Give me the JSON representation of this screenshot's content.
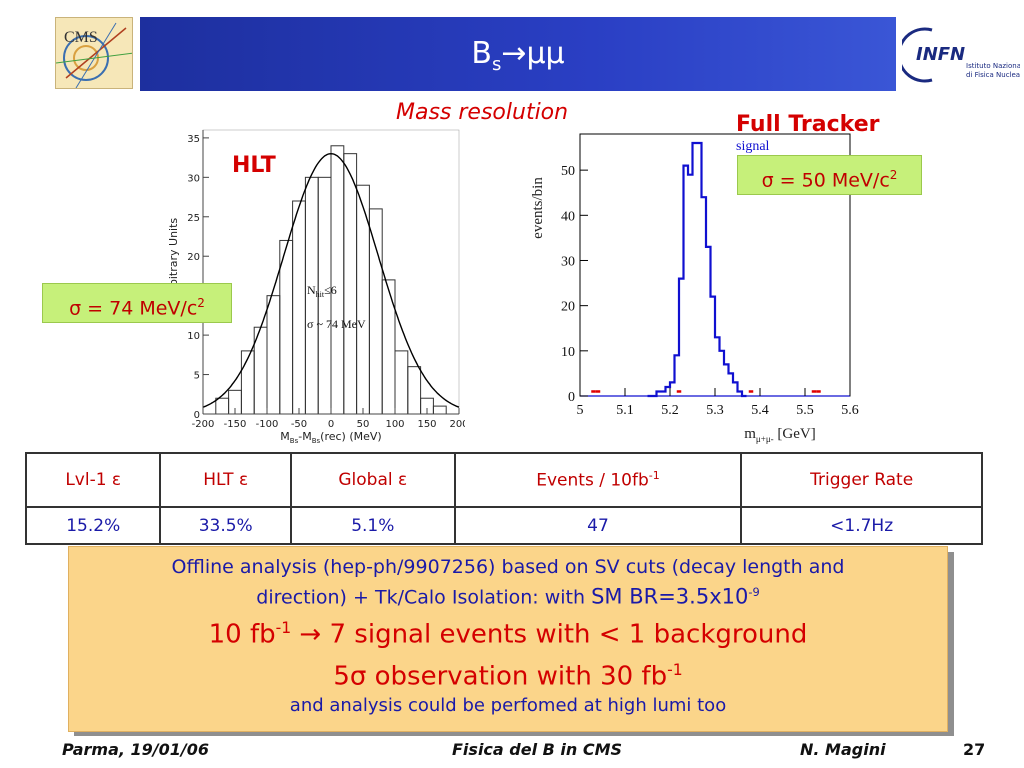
{
  "header": {
    "logo_left": "CMS",
    "title_main": "B",
    "title_sub": "s",
    "title_rest": "→μμ",
    "logo_right": "INFN",
    "logo_right_sub1": "Istituto Nazionale",
    "logo_right_sub2": "di Fisica Nucleare"
  },
  "labels": {
    "mass_resolution": "Mass resolution",
    "full_tracker": "Full Tracker",
    "hlt": "HLT",
    "sigma_hlt_text": "σ = 74 MeV/c",
    "sigma_hlt_sup": "2",
    "sigma_ft_text": "σ = 50 MeV/c",
    "sigma_ft_sup": "2"
  },
  "chart_data": [
    {
      "type": "bar",
      "ylabel": "Arbitrary Units",
      "xlabel_main": "M",
      "xlabel_sub1": "Bs",
      "xlabel_mid": "-M",
      "xlabel_sub2": "Bs",
      "xlabel_end": "(rec) (MeV)",
      "annotation1_main": "N",
      "annotation1_sub": "hit",
      "annotation1_end": "≤6",
      "annotation2": "σ ~ 74 MeV",
      "xlim": [
        -200,
        200
      ],
      "ylim": [
        0,
        36
      ],
      "x_ticks": [
        -200,
        -150,
        -100,
        -50,
        0,
        50,
        100,
        150,
        200
      ],
      "y_ticks": [
        0,
        5,
        10,
        15,
        20,
        25,
        30,
        35
      ],
      "bin_edges": [
        -180,
        -160,
        -140,
        -120,
        -100,
        -80,
        -60,
        -40,
        -20,
        0,
        20,
        40,
        60,
        80,
        100,
        120,
        140,
        160,
        180
      ],
      "values": [
        2,
        3,
        8,
        11,
        15,
        22,
        27,
        30,
        30,
        34,
        33,
        29,
        26,
        17,
        8,
        6,
        2,
        1
      ],
      "fit": {
        "type": "gaussian",
        "amplitude": 33,
        "mean": 0,
        "sigma": 74
      }
    },
    {
      "type": "bar",
      "ylabel": "events/bin",
      "xlabel_main": "m",
      "xlabel_sub": "μ+μ-",
      "xlabel_end": " [GeV]",
      "legend": "signal",
      "legend_position": "top-right",
      "xlim": [
        5.0,
        5.6
      ],
      "ylim": [
        0,
        58
      ],
      "x_ticks": [
        5,
        5.1,
        5.2,
        5.3,
        5.4,
        5.5,
        5.6
      ],
      "y_ticks": [
        0,
        10,
        20,
        30,
        40,
        50
      ],
      "bin_width": 0.01,
      "x_start": 5.15,
      "series": [
        {
          "name": "signal",
          "color": "#1010d0",
          "values": [
            0,
            0,
            1,
            1,
            2,
            3,
            9,
            26,
            51,
            49,
            56,
            56,
            44,
            33,
            22,
            13,
            10,
            7,
            5,
            3,
            1,
            0
          ]
        },
        {
          "color": "#e00000",
          "points": [
            [
              5.03,
              1
            ],
            [
              5.04,
              1
            ],
            [
              5.22,
              1
            ],
            [
              5.38,
              1
            ],
            [
              5.52,
              1
            ],
            [
              5.53,
              1
            ]
          ]
        }
      ]
    }
  ],
  "table": {
    "headers": [
      {
        "text": "Lvl-1 ε"
      },
      {
        "text": "HLT ε"
      },
      {
        "text": "Global ε"
      },
      {
        "text": "Events / 10fb",
        "sup": "-1"
      },
      {
        "text": "Trigger Rate"
      }
    ],
    "values": [
      "15.2%",
      "33.5%",
      "5.1%",
      "47",
      "<1.7Hz"
    ]
  },
  "summary": {
    "line1": "Offline analysis (hep-ph/9907256) based on SV cuts (decay length and",
    "line2_a": "direction) + Tk/Calo Isolation: with ",
    "line2_b": "SM BR=3.5x10",
    "line2_sup": "-9",
    "line3_a": "10 fb",
    "line3_sup": "-1",
    "line3_b": " → 7 signal events with < 1 background",
    "line4_a": "5σ observation with 30 fb",
    "line4_sup": "-1",
    "line5": "and analysis could be perfomed at high lumi too"
  },
  "footer": {
    "left": "Parma, 19/01/06",
    "middle": "Fisica del B in CMS",
    "right": "N. Magini",
    "page": "27"
  },
  "colors": {
    "title_bar": "#2a3fc4",
    "red_text": "#d40000",
    "blue_text": "#1a1aa8",
    "sigma_box": "#c6f07a",
    "summary_box": "#fbd58a"
  }
}
